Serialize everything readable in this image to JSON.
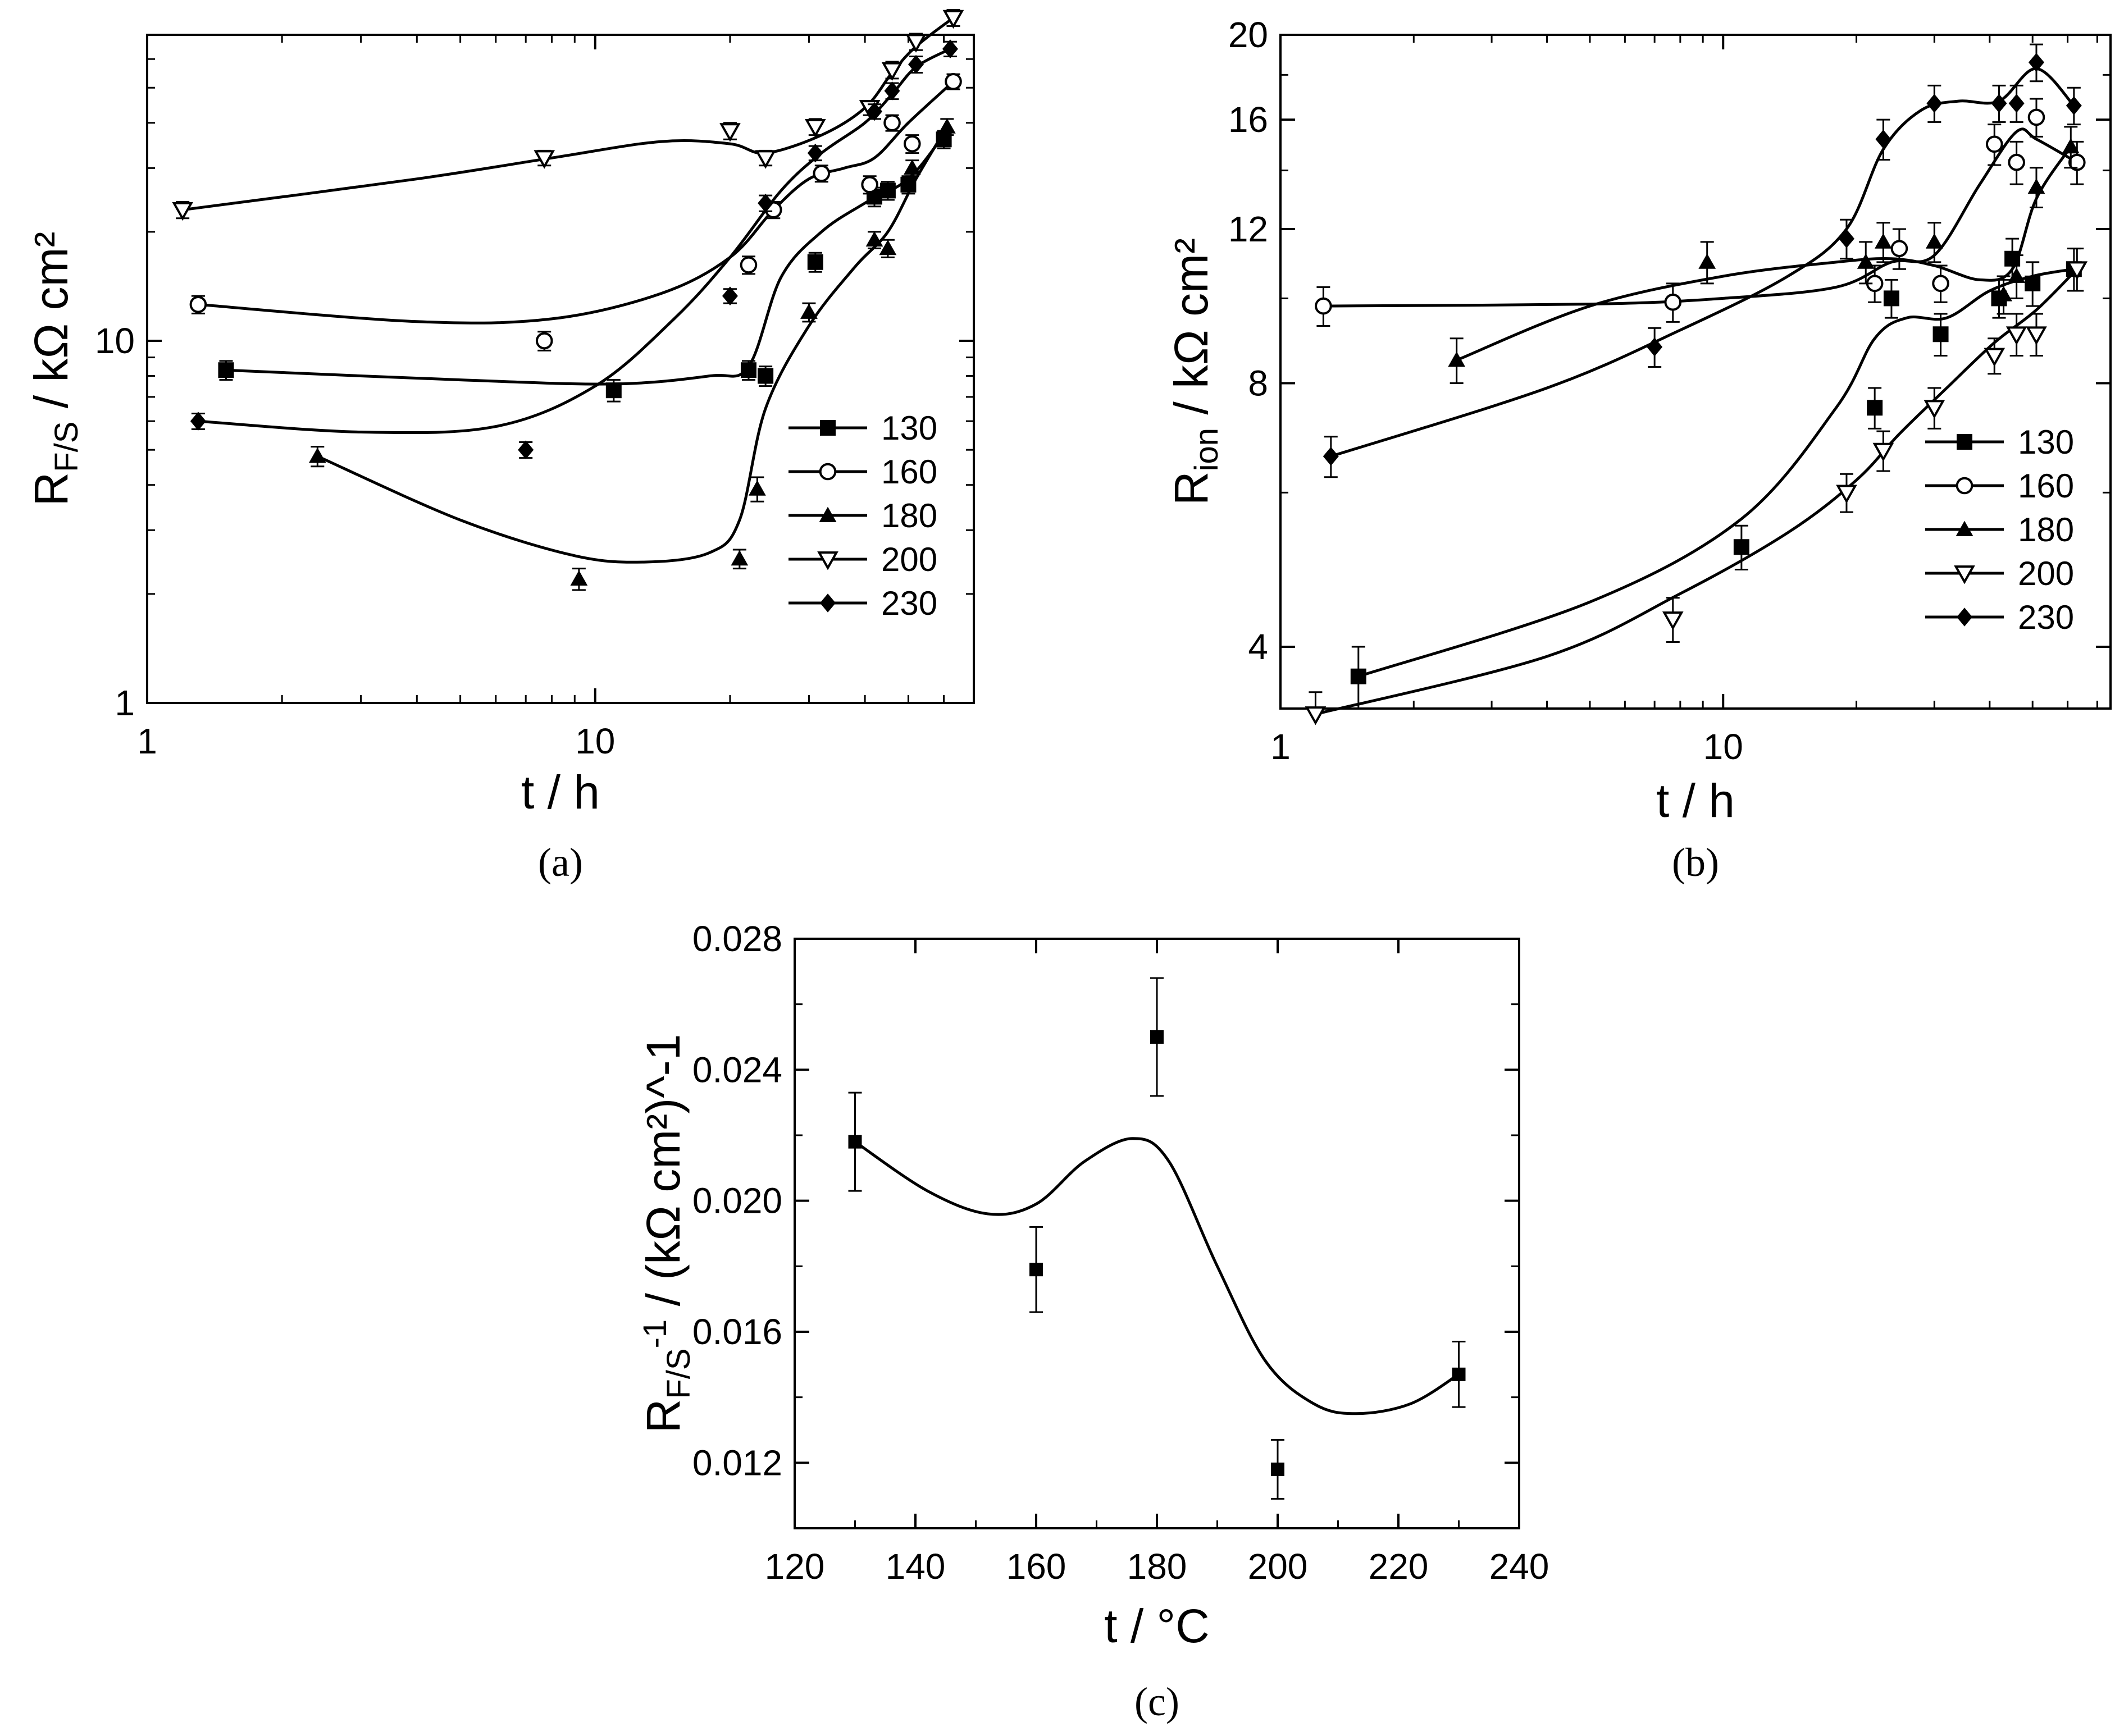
{
  "chart_data": [
    {
      "id": "a",
      "type": "scatter",
      "panel_label": "(a)",
      "xscale": "log",
      "yscale": "log",
      "xlim": [
        1,
        70
      ],
      "ylim": [
        1,
        70
      ],
      "xticks": [
        1,
        10
      ],
      "yticks": [
        1,
        10
      ],
      "xlabel": "t / h",
      "ylabel": "R_F/S / kΩ cm²",
      "legend": "bottom-right",
      "series": [
        {
          "name": "130",
          "marker": "square-filled",
          "points": [
            [
              1.5,
              8.3,
              0.5
            ],
            [
              11,
              7.3,
              0.5
            ],
            [
              22,
              8.3,
              0.5
            ],
            [
              24,
              8.0,
              0.5
            ],
            [
              31,
              16.5,
              1.0
            ],
            [
              42,
              25.0,
              1.5
            ],
            [
              45,
              26.0,
              1.5
            ],
            [
              50,
              27.0,
              1.5
            ],
            [
              60,
              36.0,
              2.0
            ]
          ],
          "curve": [
            [
              1.5,
              8.3
            ],
            [
              5,
              7.8
            ],
            [
              11,
              7.6
            ],
            [
              18,
              8.0
            ],
            [
              22,
              8.5
            ],
            [
              26,
              15
            ],
            [
              32,
              20
            ],
            [
              40,
              24
            ],
            [
              50,
              28
            ],
            [
              60,
              37
            ]
          ]
        },
        {
          "name": "160",
          "marker": "circle-open",
          "points": [
            [
              1.3,
              12.6,
              0.7
            ],
            [
              7.7,
              10.0,
              0.6
            ],
            [
              22,
              16.2,
              0.9
            ],
            [
              25,
              23.0,
              1.2
            ],
            [
              32,
              29.0,
              1.5
            ],
            [
              41,
              27.0,
              1.5
            ],
            [
              46,
              40.0,
              2.0
            ],
            [
              51,
              35.0,
              2.0
            ],
            [
              63,
              52.0,
              2.5
            ]
          ],
          "curve": [
            [
              1.3,
              12.6
            ],
            [
              4,
              11.3
            ],
            [
              8,
              11.5
            ],
            [
              14,
              13.5
            ],
            [
              20,
              17
            ],
            [
              25,
              23
            ],
            [
              30,
              28
            ],
            [
              36,
              30
            ],
            [
              42,
              32
            ],
            [
              50,
              40
            ],
            [
              63,
              52
            ]
          ]
        },
        {
          "name": "180",
          "marker": "triangle-filled",
          "points": [
            [
              2.4,
              4.8,
              0.3
            ],
            [
              9.2,
              2.2,
              0.15
            ],
            [
              21,
              2.5,
              0.15
            ],
            [
              23,
              3.9,
              0.3
            ],
            [
              30,
              12.0,
              0.7
            ],
            [
              42,
              19.0,
              1.0
            ],
            [
              45,
              18.0,
              1.0
            ],
            [
              51,
              30.0,
              1.5
            ],
            [
              61,
              39.0,
              2.0
            ]
          ],
          "curve": [
            [
              2.4,
              4.8
            ],
            [
              5,
              3.2
            ],
            [
              9,
              2.55
            ],
            [
              13,
              2.45
            ],
            [
              18,
              2.6
            ],
            [
              21,
              3.2
            ],
            [
              24,
              6.5
            ],
            [
              30,
              11
            ],
            [
              38,
              16
            ],
            [
              45,
              20
            ],
            [
              52,
              28
            ],
            [
              61,
              39
            ]
          ]
        },
        {
          "name": "200",
          "marker": "triangle-open-down",
          "points": [
            [
              1.2,
              23.0,
              1.2
            ],
            [
              7.7,
              32.0,
              1.5
            ],
            [
              20,
              38.0,
              2.0
            ],
            [
              24,
              32.0,
              1.5
            ],
            [
              31,
              39.0,
              2.0
            ],
            [
              41,
              44.0,
              2.0
            ],
            [
              46,
              56.0,
              3.0
            ],
            [
              52,
              67.0,
              3.5
            ],
            [
              63,
              78.0,
              4.0
            ]
          ],
          "curve": [
            [
              1.2,
              23
            ],
            [
              4,
              28
            ],
            [
              8,
              32
            ],
            [
              14,
              35.5
            ],
            [
              20,
              35
            ],
            [
              24,
              33
            ],
            [
              32,
              37
            ],
            [
              40,
              44
            ],
            [
              46,
              55
            ],
            [
              52,
              65
            ],
            [
              63,
              78
            ]
          ]
        },
        {
          "name": "230",
          "marker": "diamond-filled",
          "points": [
            [
              1.3,
              6.0,
              0.3
            ],
            [
              7,
              5.0,
              0.25
            ],
            [
              20,
              13.3,
              0.6
            ],
            [
              24,
              24.0,
              1.2
            ],
            [
              31,
              33.0,
              1.5
            ],
            [
              42,
              43.0,
              2.0
            ],
            [
              46,
              49.0,
              2.5
            ],
            [
              52,
              58.0,
              3.0
            ],
            [
              62,
              64.0,
              3.0
            ]
          ],
          "curve": [
            [
              1.3,
              6.0
            ],
            [
              3,
              5.6
            ],
            [
              6,
              5.8
            ],
            [
              10,
              7.5
            ],
            [
              15,
              11.5
            ],
            [
              20,
              17
            ],
            [
              26,
              26
            ],
            [
              32,
              33
            ],
            [
              40,
              40
            ],
            [
              46,
              48
            ],
            [
              52,
              57
            ],
            [
              62,
              64
            ]
          ]
        }
      ]
    },
    {
      "id": "b",
      "type": "scatter",
      "panel_label": "(b)",
      "xscale": "log",
      "yscale": "log",
      "xlim": [
        1,
        75
      ],
      "ylim": [
        3.4,
        20
      ],
      "xticks": [
        1,
        10
      ],
      "yticks": [
        4,
        8,
        12,
        16,
        20
      ],
      "xlabel": "t / h",
      "ylabel": "R_ion / kΩ cm²",
      "legend": "bottom-right",
      "series": [
        {
          "name": "130",
          "marker": "square-filled",
          "points": [
            [
              1.5,
              3.7,
              0.3
            ],
            [
              11,
              5.2,
              0.3
            ],
            [
              22,
              7.5,
              0.4
            ],
            [
              24,
              10.0,
              0.5
            ],
            [
              31,
              9.1,
              0.5
            ],
            [
              42,
              10.0,
              0.5
            ],
            [
              45,
              11.1,
              0.6
            ],
            [
              50,
              10.4,
              0.6
            ],
            [
              62,
              10.8,
              0.6
            ]
          ],
          "curve": [
            [
              1.5,
              3.7
            ],
            [
              5,
              4.5
            ],
            [
              11,
              5.6
            ],
            [
              18,
              7.5
            ],
            [
              22,
              9.0
            ],
            [
              26,
              9.5
            ],
            [
              32,
              9.5
            ],
            [
              40,
              10.2
            ],
            [
              50,
              10.6
            ],
            [
              62,
              10.8
            ]
          ]
        },
        {
          "name": "160",
          "marker": "circle-open",
          "points": [
            [
              1.25,
              9.8,
              0.5
            ],
            [
              7.7,
              9.9,
              0.5
            ],
            [
              22,
              10.4,
              0.5
            ],
            [
              25,
              11.4,
              0.6
            ],
            [
              31,
              10.4,
              0.5
            ],
            [
              41,
              15.0,
              0.8
            ],
            [
              46,
              14.3,
              0.8
            ],
            [
              51,
              16.1,
              0.8
            ],
            [
              63,
              14.3,
              0.8
            ]
          ],
          "curve": [
            [
              1.25,
              9.8
            ],
            [
              5,
              9.85
            ],
            [
              10,
              10.0
            ],
            [
              18,
              10.3
            ],
            [
              24,
              11.0
            ],
            [
              30,
              11.2
            ],
            [
              38,
              13.5
            ],
            [
              46,
              15.5
            ],
            [
              51,
              15.2
            ],
            [
              63,
              14.3
            ]
          ]
        },
        {
          "name": "180",
          "marker": "triangle-filled",
          "points": [
            [
              2.5,
              8.5,
              0.5
            ],
            [
              9.2,
              11.0,
              0.6
            ],
            [
              21,
              11.0,
              0.6
            ],
            [
              23,
              11.6,
              0.6
            ],
            [
              30,
              11.6,
              0.6
            ],
            [
              43,
              10.1,
              0.5
            ],
            [
              46,
              10.6,
              0.6
            ],
            [
              51,
              13.4,
              0.7
            ],
            [
              61,
              14.9,
              0.8
            ]
          ],
          "curve": [
            [
              2.5,
              8.5
            ],
            [
              5,
              9.8
            ],
            [
              10,
              10.6
            ],
            [
              18,
              11.0
            ],
            [
              24,
              11.1
            ],
            [
              30,
              10.9
            ],
            [
              38,
              10.5
            ],
            [
              45,
              10.8
            ],
            [
              51,
              13.0
            ],
            [
              61,
              14.9
            ]
          ]
        },
        {
          "name": "200",
          "marker": "triangle-open-down",
          "points": [
            [
              1.2,
              3.35,
              0.2
            ],
            [
              7.7,
              4.3,
              0.25
            ],
            [
              19,
              6.0,
              0.3
            ],
            [
              23,
              6.7,
              0.35
            ],
            [
              30,
              7.5,
              0.4
            ],
            [
              41,
              8.6,
              0.4
            ],
            [
              46,
              9.1,
              0.5
            ],
            [
              51,
              9.1,
              0.5
            ],
            [
              63,
              10.8,
              0.6
            ]
          ],
          "curve": [
            [
              1.2,
              3.35
            ],
            [
              4,
              3.9
            ],
            [
              8,
              4.6
            ],
            [
              14,
              5.4
            ],
            [
              20,
              6.2
            ],
            [
              25,
              7.0
            ],
            [
              32,
              7.9
            ],
            [
              41,
              8.9
            ],
            [
              51,
              9.7
            ],
            [
              63,
              10.8
            ]
          ]
        },
        {
          "name": "230",
          "marker": "diamond-filled",
          "points": [
            [
              1.3,
              6.6,
              0.35
            ],
            [
              7,
              8.8,
              0.45
            ],
            [
              19,
              11.7,
              0.6
            ],
            [
              23,
              15.2,
              0.8
            ],
            [
              30,
              16.7,
              0.8
            ],
            [
              42,
              16.7,
              0.8
            ],
            [
              46,
              16.7,
              0.8
            ],
            [
              51,
              18.6,
              0.9
            ],
            [
              62,
              16.6,
              0.8
            ]
          ],
          "curve": [
            [
              1.3,
              6.6
            ],
            [
              4,
              7.9
            ],
            [
              8,
              9.2
            ],
            [
              14,
              10.6
            ],
            [
              19,
              12.0
            ],
            [
              23,
              14.8
            ],
            [
              28,
              16.4
            ],
            [
              34,
              16.8
            ],
            [
              42,
              16.8
            ],
            [
              51,
              18.3
            ],
            [
              62,
              16.6
            ]
          ]
        }
      ]
    },
    {
      "id": "c",
      "type": "scatter",
      "panel_label": "(c)",
      "xlim": [
        120,
        240
      ],
      "ylim": [
        0.01,
        0.028
      ],
      "xticks": [
        120,
        140,
        160,
        180,
        200,
        220,
        240
      ],
      "yticks": [
        0.012,
        0.016,
        0.02,
        0.024,
        0.028
      ],
      "ytick_labels": [
        "0.012",
        "0.016",
        "0.020",
        "0.024",
        "0.028"
      ],
      "xlabel": "t / °C",
      "ylabel": "R_F/S^-1 / (kΩ cm²)^-1",
      "series": [
        {
          "name": "",
          "marker": "square-filled",
          "points": [
            [
              130,
              0.0218,
              0.0015
            ],
            [
              160,
              0.0179,
              0.0013
            ],
            [
              180,
              0.025,
              0.0018
            ],
            [
              200,
              0.0118,
              0.0009
            ],
            [
              230,
              0.0147,
              0.001
            ]
          ],
          "curve": [
            [
              130,
              0.0218
            ],
            [
              142,
              0.0203
            ],
            [
              152,
              0.0196
            ],
            [
              160,
              0.0199
            ],
            [
              168,
              0.0212
            ],
            [
              176,
              0.0219
            ],
            [
              182,
              0.0212
            ],
            [
              190,
              0.018
            ],
            [
              198,
              0.0151
            ],
            [
              206,
              0.0138
            ],
            [
              213,
              0.0135
            ],
            [
              222,
              0.0138
            ],
            [
              230,
              0.0147
            ]
          ]
        }
      ]
    }
  ]
}
